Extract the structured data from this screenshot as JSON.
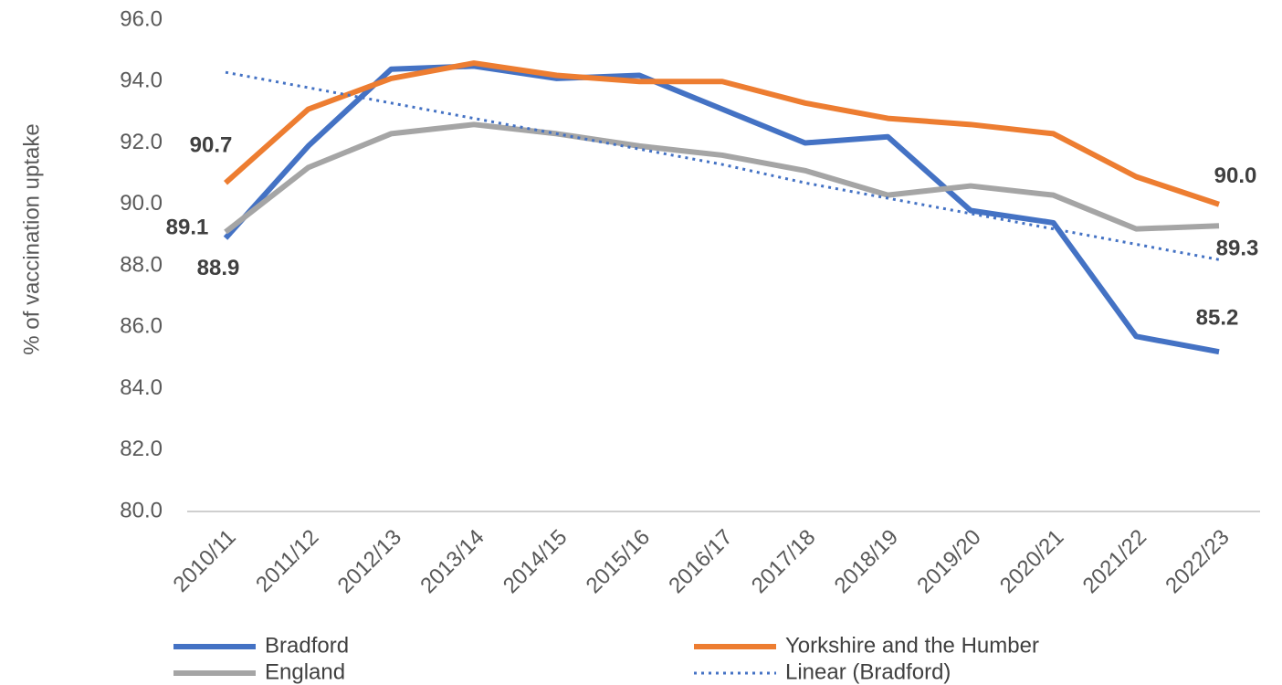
{
  "chart_data": {
    "type": "line",
    "y_label": "% of vaccination uptake",
    "categories": [
      "2010/11",
      "2011/12",
      "2012/13",
      "2013/14",
      "2014/15",
      "2015/16",
      "2016/17",
      "2017/18",
      "2018/19",
      "2019/20",
      "2020/21",
      "2021/22",
      "2022/23"
    ],
    "ylim": [
      80,
      96
    ],
    "yticks": [
      {
        "value": 80,
        "label": "80.0"
      },
      {
        "value": 82,
        "label": "82.0"
      },
      {
        "value": 84,
        "label": "84.0"
      },
      {
        "value": 86,
        "label": "86.0"
      },
      {
        "value": 88,
        "label": "88.0"
      },
      {
        "value": 90,
        "label": "90.0"
      },
      {
        "value": 92,
        "label": "92.0"
      },
      {
        "value": 94,
        "label": "94.0"
      },
      {
        "value": 96,
        "label": "96.0"
      }
    ],
    "grid": false,
    "legend": "bottom",
    "series": [
      {
        "name": "Bradford",
        "color": "#4472c4",
        "style": "solid",
        "values": [
          88.9,
          91.9,
          94.4,
          94.5,
          94.1,
          94.2,
          93.1,
          92.0,
          92.2,
          89.8,
          89.4,
          85.7,
          85.2
        ],
        "value_labels": [
          "88.9",
          null,
          null,
          null,
          null,
          null,
          null,
          null,
          null,
          null,
          null,
          null,
          "85.2"
        ]
      },
      {
        "name": "Yorkshire and the Humber",
        "color": "#ed7d31",
        "style": "solid",
        "values": [
          90.7,
          93.1,
          94.1,
          94.6,
          94.2,
          94.0,
          94.0,
          93.3,
          92.8,
          92.6,
          92.3,
          90.9,
          90.0
        ],
        "value_labels": [
          "90.7",
          null,
          null,
          null,
          null,
          null,
          null,
          null,
          null,
          null,
          null,
          null,
          "90.0"
        ]
      },
      {
        "name": "England",
        "color": "#a5a5a5",
        "style": "solid",
        "values": [
          89.1,
          91.2,
          92.3,
          92.6,
          92.3,
          91.9,
          91.6,
          91.1,
          90.3,
          90.6,
          90.3,
          89.2,
          89.3
        ],
        "value_labels": [
          "89.1",
          null,
          null,
          null,
          null,
          null,
          null,
          null,
          null,
          null,
          null,
          null,
          "89.3"
        ]
      },
      {
        "name": "Linear (Bradford)",
        "color": "#4472c4",
        "style": "dotted",
        "values": [
          94.3,
          93.8,
          93.3,
          92.8,
          92.3,
          91.8,
          91.3,
          90.7,
          90.2,
          89.7,
          89.2,
          88.7,
          88.2
        ]
      }
    ]
  }
}
